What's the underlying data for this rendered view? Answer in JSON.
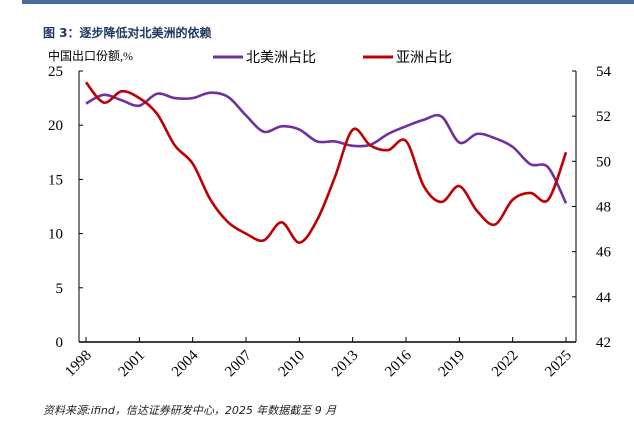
{
  "title": "图 3：逐步降低对北美洲的依赖",
  "source": "资料来源:ifind，信达证券研发中心，2025 年数据截至 9 月",
  "chart_data": {
    "type": "line",
    "title": "图 3：逐步降低对北美洲的依赖",
    "ylabel": "中国出口份额,%",
    "x": [
      1998,
      1999,
      2000,
      2001,
      2002,
      2003,
      2004,
      2005,
      2006,
      2007,
      2008,
      2009,
      2010,
      2011,
      2012,
      2013,
      2014,
      2015,
      2016,
      2017,
      2018,
      2019,
      2020,
      2021,
      2022,
      2023,
      2024,
      2025
    ],
    "xticks": [
      "1998",
      "2001",
      "2004",
      "2007",
      "2010",
      "2013",
      "2016",
      "2019",
      "2022",
      "2025"
    ],
    "ylim": [
      0,
      25
    ],
    "yticks": [
      "0",
      "5",
      "10",
      "15",
      "20",
      "25"
    ],
    "y2lim": [
      42,
      54
    ],
    "y2ticks": [
      "42",
      "44",
      "46",
      "48",
      "50",
      "52",
      "54"
    ],
    "legend_position": "top",
    "series": [
      {
        "name": "北美洲占比",
        "axis": "left",
        "color": "#7030a0",
        "values": [
          22.0,
          22.8,
          22.3,
          21.8,
          22.9,
          22.5,
          22.5,
          23.0,
          22.6,
          20.9,
          19.4,
          19.9,
          19.6,
          18.5,
          18.5,
          18.1,
          18.2,
          19.2,
          19.9,
          20.5,
          20.8,
          18.4,
          19.2,
          18.8,
          18.0,
          16.4,
          16.1,
          12.8
        ]
      },
      {
        "name": "亚洲占比",
        "axis": "right",
        "color": "#c00000",
        "values": [
          53.5,
          52.6,
          53.1,
          52.8,
          52.1,
          50.7,
          49.9,
          48.3,
          47.3,
          46.8,
          46.5,
          47.3,
          46.4,
          47.4,
          49.3,
          51.4,
          50.7,
          50.5,
          50.9,
          48.9,
          48.2,
          48.9,
          47.8,
          47.2,
          48.3,
          48.6,
          48.3,
          50.4
        ]
      }
    ]
  }
}
